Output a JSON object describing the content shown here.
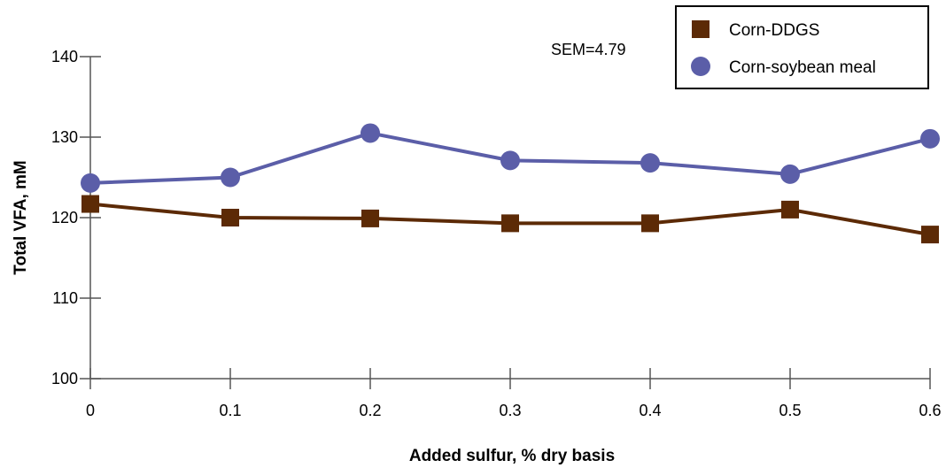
{
  "chart_data": {
    "type": "line",
    "xlabel": "Added sulfur, % dry basis",
    "ylabel": "Total VFA, mM",
    "x": [
      0,
      0.1,
      0.2,
      0.3,
      0.4,
      0.5,
      0.6
    ],
    "x_tick_labels": [
      "0",
      "0.1",
      "0.2",
      "0.3",
      "0.4",
      "0.5",
      "0.6"
    ],
    "y_ticks": [
      100,
      110,
      120,
      130,
      140
    ],
    "y_tick_labels": [
      "100",
      "110",
      "120",
      "130",
      "140"
    ],
    "xlim": [
      0,
      0.6
    ],
    "ylim": [
      100,
      140
    ],
    "grid": false,
    "legend_position": "top-right",
    "annotation": "SEM=4.79",
    "series": [
      {
        "name": "Corn-DDGS",
        "marker": "square",
        "color": "#5c2a06",
        "values": [
          121.7,
          120.0,
          119.9,
          119.3,
          119.3,
          121.0,
          117.9
        ]
      },
      {
        "name": "Corn-soybean meal",
        "marker": "circle",
        "color": "#5b5ea8",
        "values": [
          124.3,
          125.0,
          130.5,
          127.1,
          126.8,
          125.4,
          129.8
        ]
      }
    ]
  }
}
